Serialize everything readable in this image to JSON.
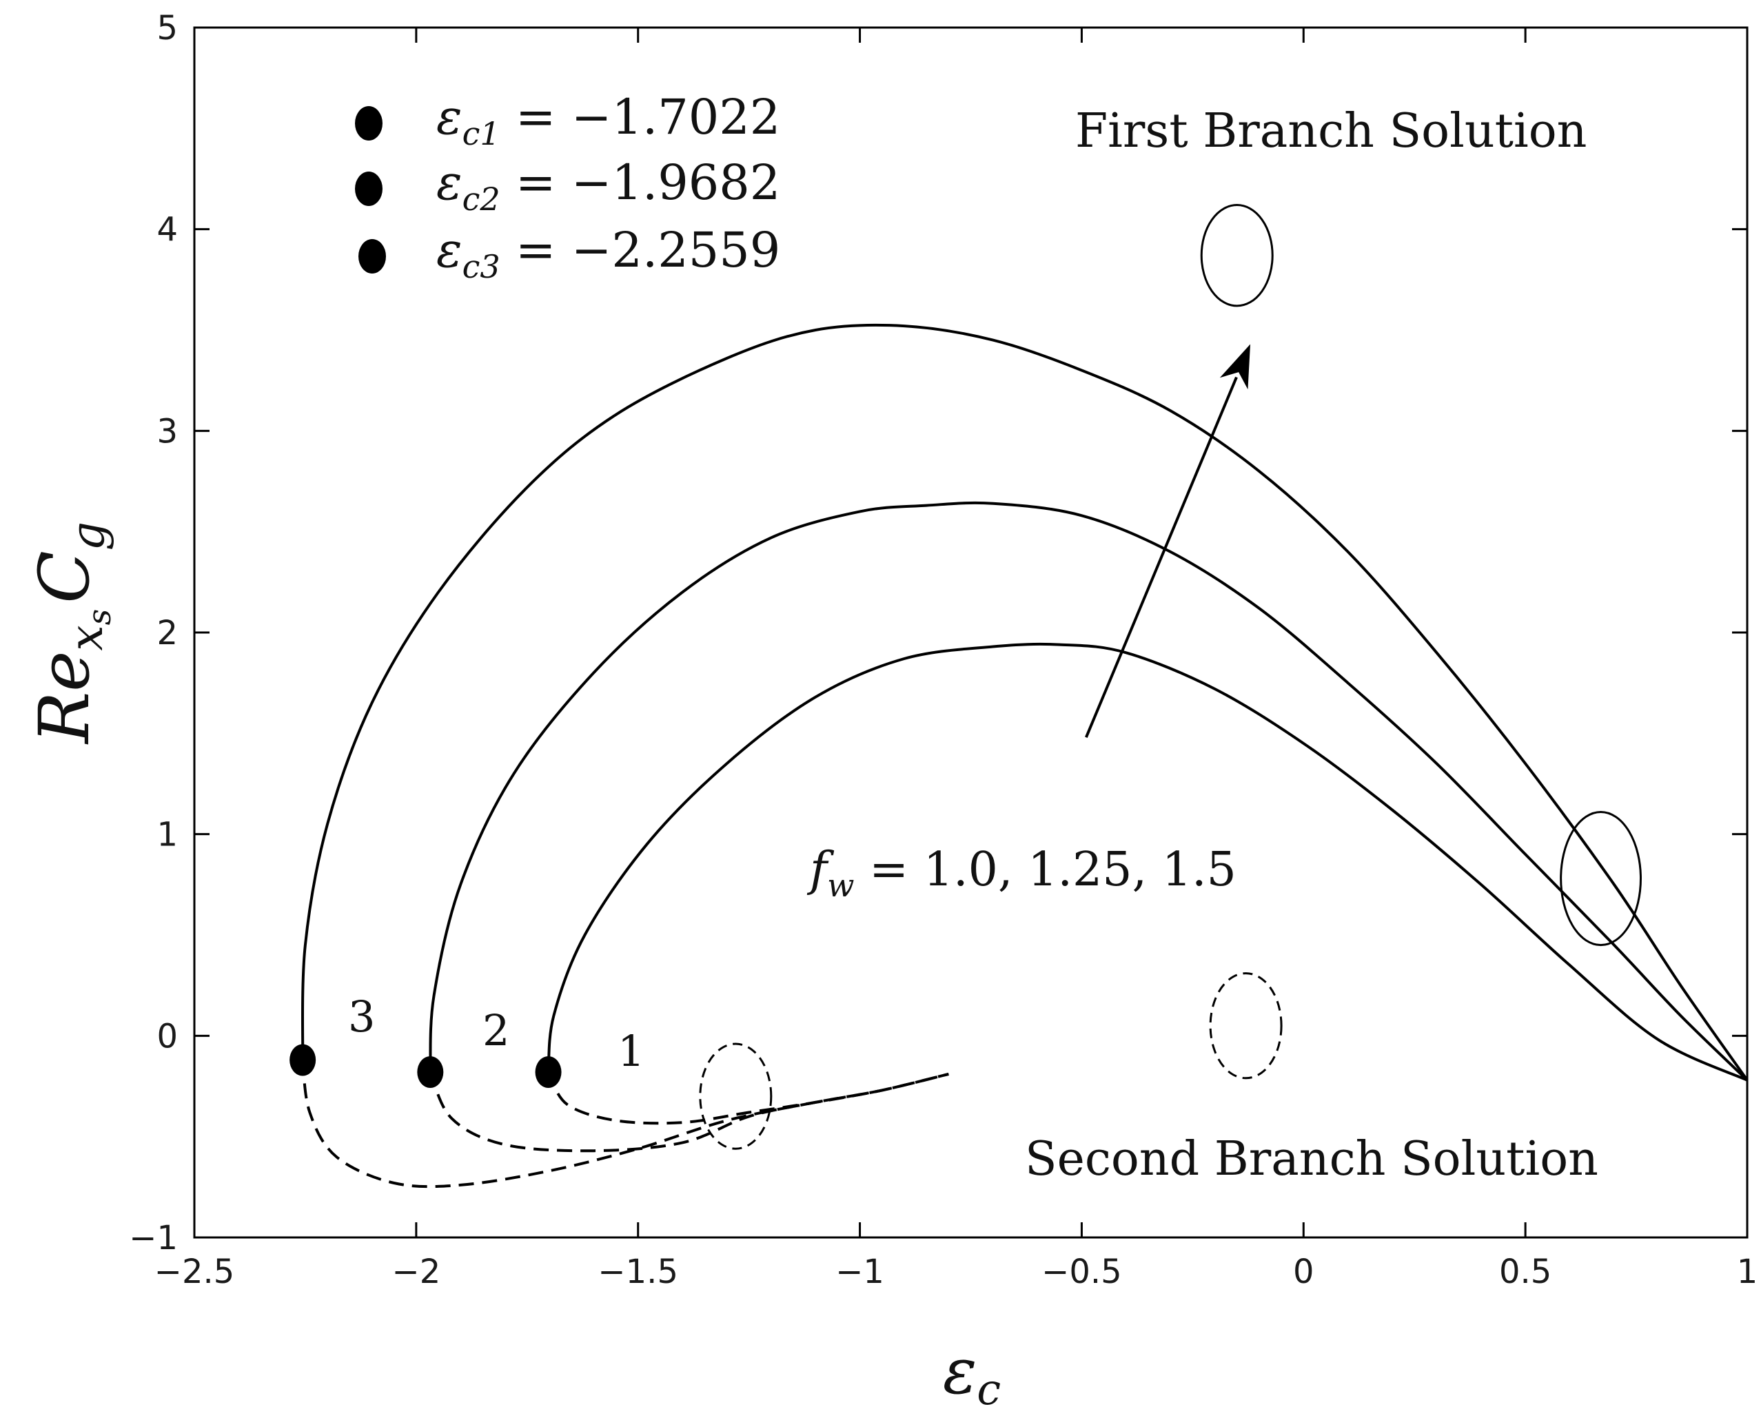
{
  "chart_data": {
    "type": "line",
    "xlim": [
      -2.5,
      1
    ],
    "ylim": [
      -1,
      5
    ],
    "x_ticks": [
      "−2.5",
      "−2",
      "−1.5",
      "−1",
      "−0.5",
      "0",
      "0.5",
      "1"
    ],
    "y_ticks": [
      "−1",
      "0",
      "1",
      "2",
      "3",
      "4",
      "5"
    ],
    "xlabel": {
      "base": "ε",
      "sub": "c"
    },
    "ylabel": {
      "base": "Re",
      "sub": "x",
      "subsub": "s",
      "tail": "C",
      "tail_sub": "g"
    },
    "grid": false,
    "legend": {
      "placement": "top-left",
      "entries": [
        {
          "sym": "ε",
          "sub": "c1",
          "text": " = −1.7022"
        },
        {
          "sym": "ε",
          "sub": "c2",
          "text": " = −1.9682"
        },
        {
          "sym": "ε",
          "sub": "c3",
          "text": " = −2.2559"
        }
      ]
    },
    "annotations": {
      "first_branch": "First Branch Solution",
      "second_branch": "Second Branch Solution",
      "param_sym": "f",
      "param_sub": "w",
      "param_text": " = 1.0, 1.25, 1.5",
      "curve_labels": [
        "1",
        "2",
        "3"
      ]
    },
    "series": [
      {
        "curve": "1",
        "critical_point": [
          -1.7022,
          -0.18
        ],
        "first_branch": [
          [
            -1.7022,
            -0.18
          ],
          [
            -1.69,
            0.1
          ],
          [
            -1.62,
            0.5
          ],
          [
            -1.48,
            0.95
          ],
          [
            -1.3,
            1.35
          ],
          [
            -1.1,
            1.68
          ],
          [
            -0.9,
            1.87
          ],
          [
            -0.7,
            1.93
          ],
          [
            -0.55,
            1.94
          ],
          [
            -0.4,
            1.9
          ],
          [
            -0.2,
            1.72
          ],
          [
            0.0,
            1.45
          ],
          [
            0.2,
            1.12
          ],
          [
            0.4,
            0.75
          ],
          [
            0.6,
            0.35
          ],
          [
            0.8,
            -0.02
          ],
          [
            1.0,
            -0.22
          ]
        ],
        "second_branch": [
          [
            -1.7022,
            -0.18
          ],
          [
            -1.66,
            -0.34
          ],
          [
            -1.55,
            -0.42
          ],
          [
            -1.4,
            -0.43
          ],
          [
            -1.25,
            -0.38
          ],
          [
            -1.1,
            -0.33
          ],
          [
            -0.95,
            -0.27
          ],
          [
            -0.8,
            -0.19
          ]
        ]
      },
      {
        "curve": "2",
        "critical_point": [
          -1.9682,
          -0.18
        ],
        "first_branch": [
          [
            -1.9682,
            -0.18
          ],
          [
            -1.96,
            0.2
          ],
          [
            -1.9,
            0.75
          ],
          [
            -1.78,
            1.3
          ],
          [
            -1.6,
            1.8
          ],
          [
            -1.4,
            2.2
          ],
          [
            -1.2,
            2.47
          ],
          [
            -1.0,
            2.6
          ],
          [
            -0.85,
            2.63
          ],
          [
            -0.7,
            2.64
          ],
          [
            -0.5,
            2.58
          ],
          [
            -0.3,
            2.4
          ],
          [
            -0.1,
            2.12
          ],
          [
            0.1,
            1.75
          ],
          [
            0.3,
            1.35
          ],
          [
            0.5,
            0.9
          ],
          [
            0.7,
            0.45
          ],
          [
            0.85,
            0.1
          ],
          [
            1.0,
            -0.22
          ]
        ],
        "second_branch": [
          [
            -1.9682,
            -0.18
          ],
          [
            -1.92,
            -0.41
          ],
          [
            -1.8,
            -0.54
          ],
          [
            -1.6,
            -0.57
          ],
          [
            -1.4,
            -0.53
          ],
          [
            -1.25,
            -0.4
          ],
          [
            -1.1,
            -0.33
          ],
          [
            -0.95,
            -0.27
          ],
          [
            -0.8,
            -0.19
          ]
        ]
      },
      {
        "curve": "3",
        "critical_point": [
          -2.2559,
          -0.12
        ],
        "first_branch": [
          [
            -2.2559,
            -0.12
          ],
          [
            -2.25,
            0.45
          ],
          [
            -2.2,
            1.05
          ],
          [
            -2.1,
            1.65
          ],
          [
            -1.95,
            2.2
          ],
          [
            -1.75,
            2.72
          ],
          [
            -1.55,
            3.08
          ],
          [
            -1.3,
            3.36
          ],
          [
            -1.1,
            3.5
          ],
          [
            -0.9,
            3.52
          ],
          [
            -0.7,
            3.45
          ],
          [
            -0.5,
            3.3
          ],
          [
            -0.3,
            3.1
          ],
          [
            -0.1,
            2.8
          ],
          [
            0.1,
            2.4
          ],
          [
            0.3,
            1.9
          ],
          [
            0.5,
            1.35
          ],
          [
            0.7,
            0.75
          ],
          [
            0.85,
            0.25
          ],
          [
            1.0,
            -0.22
          ]
        ],
        "second_branch": [
          [
            -2.2559,
            -0.12
          ],
          [
            -2.24,
            -0.38
          ],
          [
            -2.18,
            -0.6
          ],
          [
            -2.05,
            -0.73
          ],
          [
            -1.9,
            -0.74
          ],
          [
            -1.7,
            -0.67
          ],
          [
            -1.5,
            -0.56
          ],
          [
            -1.3,
            -0.42
          ],
          [
            -1.1,
            -0.33
          ],
          [
            -0.95,
            -0.27
          ],
          [
            -0.8,
            -0.19
          ]
        ]
      }
    ],
    "markers": {
      "first_branch_ellipses_data": [
        [
          -0.15,
          3.87,
          0.08,
          0.25
        ],
        [
          0.67,
          0.78,
          0.09,
          0.33
        ]
      ],
      "second_branch_ellipses_data": [
        [
          -1.28,
          -0.3,
          0.08,
          0.26
        ],
        [
          -0.13,
          0.05,
          0.08,
          0.26
        ]
      ],
      "arrow_data": [
        [
          -0.49,
          1.48
        ],
        [
          -0.12,
          3.43
        ]
      ]
    }
  }
}
